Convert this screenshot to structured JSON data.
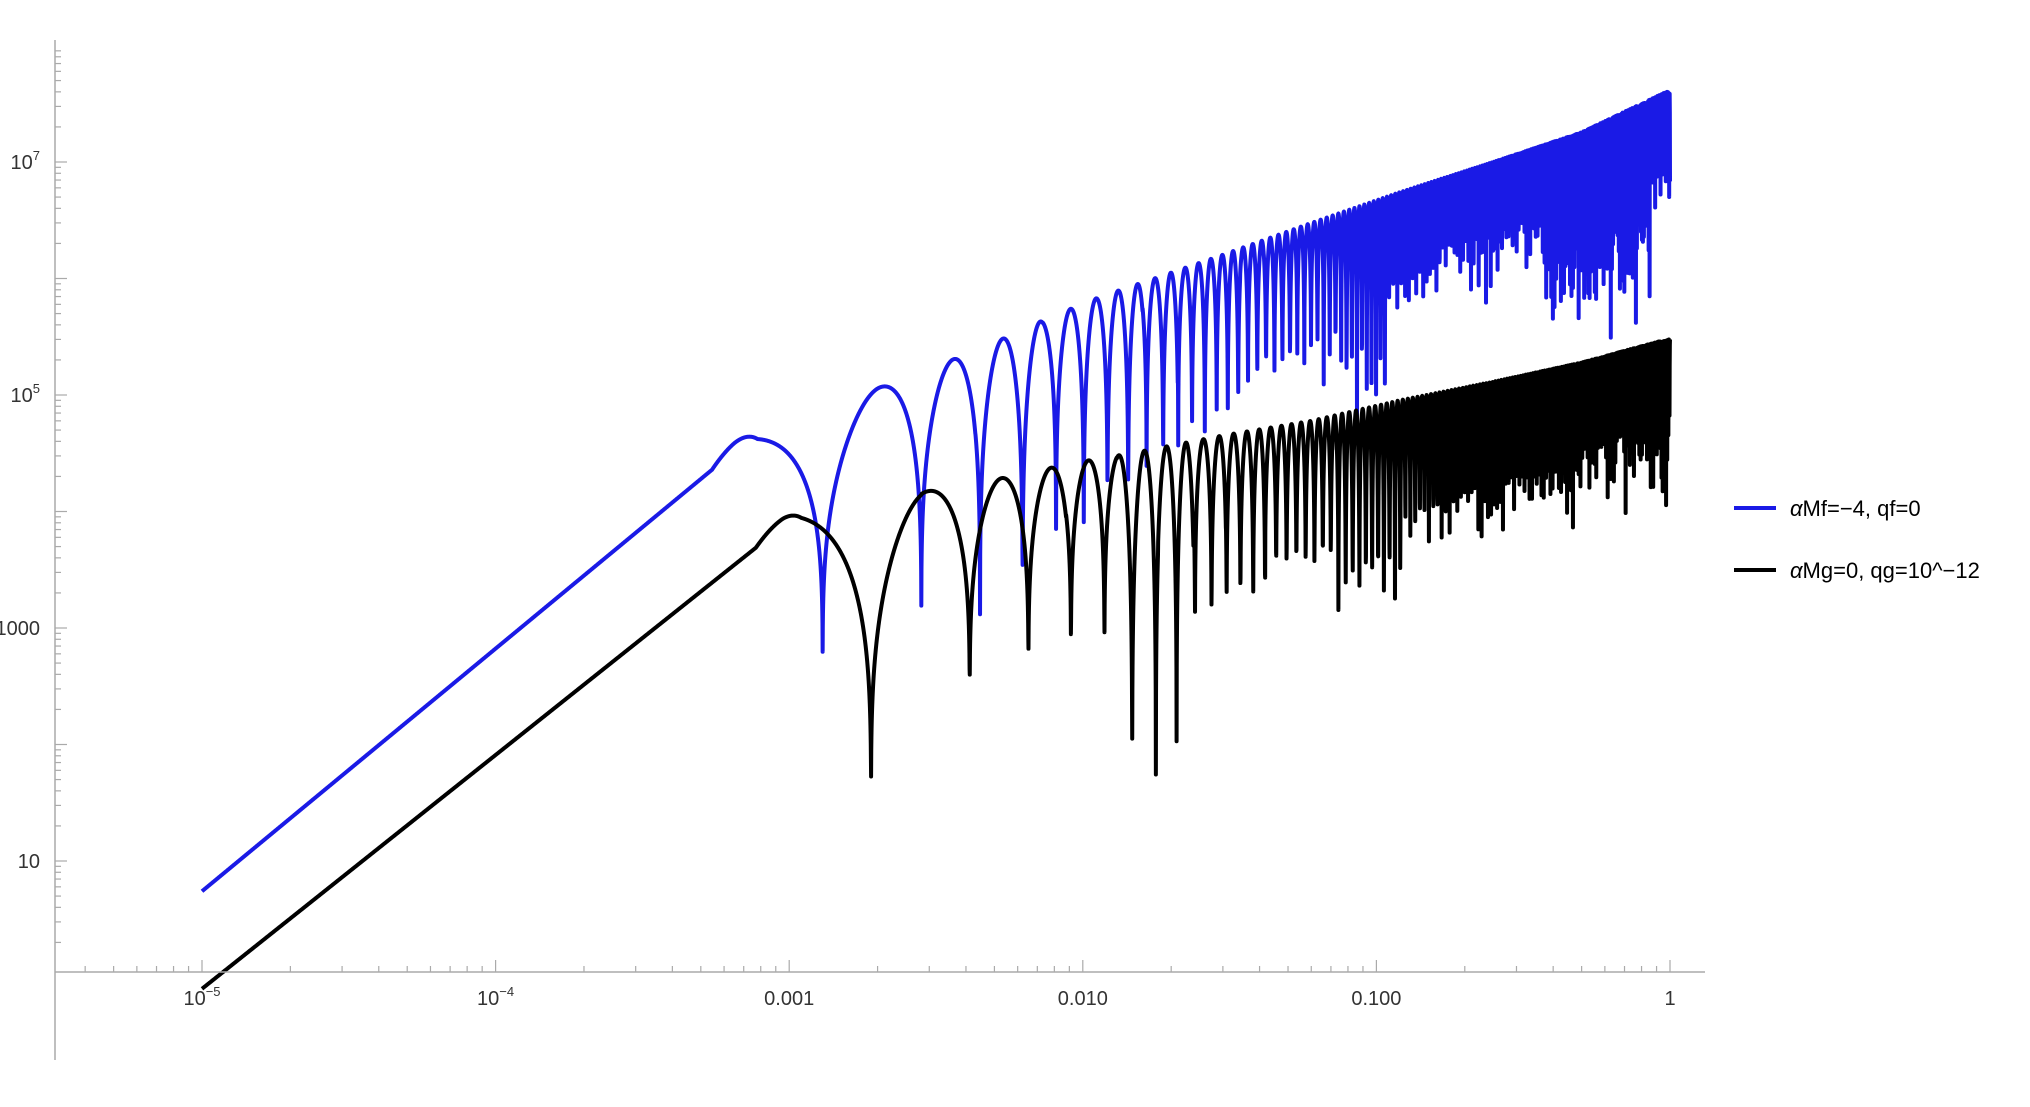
{
  "chart_data": {
    "type": "line",
    "scale": {
      "x": "log",
      "y": "log"
    },
    "xlim": [
      3e-06,
      1.3
    ],
    "ylim": [
      1,
      100000000.0
    ],
    "x_ticks": [
      {
        "value": 1e-05,
        "base": "10",
        "exp": "−5"
      },
      {
        "value": 0.0001,
        "base": "10",
        "exp": "−4"
      },
      {
        "value": 0.001,
        "text": "0.001"
      },
      {
        "value": 0.01,
        "text": "0.010"
      },
      {
        "value": 0.1,
        "text": "0.100"
      },
      {
        "value": 1,
        "text": "1"
      }
    ],
    "y_ticks": [
      {
        "value": 10,
        "text": "10"
      },
      {
        "value": 1000,
        "text": "1000"
      },
      {
        "value": 100000,
        "base": "10",
        "exp": "5"
      },
      {
        "value": 10000000,
        "base": "10",
        "exp": "7"
      }
    ],
    "legend_position": "right",
    "series": [
      {
        "name": "αMf=−4, qf=0",
        "greek": "α",
        "rest": "Mf=−4, qf=0",
        "color": "#1a1ae6",
        "x_start": 1e-05,
        "x_end": 1,
        "y_at_start": 5.5,
        "peaks": [
          {
            "x": 0.00078,
            "y": 48000
          },
          {
            "x": 0.0023,
            "y": 130000
          },
          {
            "x": 0.0045,
            "y": 250000
          },
          {
            "x": 0.0075,
            "y": 450000
          },
          {
            "x": 0.0115,
            "y": 700000
          },
          {
            "x": 0.0175,
            "y": 1000000
          },
          {
            "x": 0.03,
            "y": 1600000
          },
          {
            "x": 0.06,
            "y": 3000000
          },
          {
            "x": 0.12,
            "y": 5500000
          },
          {
            "x": 0.25,
            "y": 10000000
          },
          {
            "x": 0.5,
            "y": 18000000
          },
          {
            "x": 0.97,
            "y": 40000000
          }
        ],
        "nulls": [
          {
            "x": 0.0013,
            "y": 350
          },
          {
            "x": 0.0032,
            "y": 850
          },
          {
            "x": 0.0058,
            "y": 900
          },
          {
            "x": 0.0092,
            "y": 3200
          },
          {
            "x": 0.0138,
            "y": 5000
          },
          {
            "x": 0.0185,
            "y": 10000
          },
          {
            "x": 0.024,
            "y": 20000
          },
          {
            "x": 0.031,
            "y": 30000
          },
          {
            "x": 0.038,
            "y": 50000
          },
          {
            "x": 0.045,
            "y": 60000
          },
          {
            "x": 0.0605,
            "y": 100000
          },
          {
            "x": 0.072,
            "y": 70000
          },
          {
            "x": 0.085,
            "y": 30000
          },
          {
            "x": 0.14,
            "y": 300000
          },
          {
            "x": 0.2,
            "y": 500000
          },
          {
            "x": 0.3,
            "y": 500000
          },
          {
            "x": 0.46,
            "y": 100000
          },
          {
            "x": 0.77,
            "y": 80000
          },
          {
            "x": 0.95,
            "y": 1500000
          }
        ],
        "n_null_min": 1,
        "period_quadratic": 48000
      },
      {
        "name": "αMg=0, qg=10^−12",
        "greek": "α",
        "rest": "Mg=0, qg=10^−12",
        "color": "#000000",
        "x_start": 1e-05,
        "x_end": 1,
        "y_at_start": 0.8,
        "peaks": [
          {
            "x": 0.0011,
            "y": 10000
          },
          {
            "x": 0.003,
            "y": 15000
          },
          {
            "x": 0.0057,
            "y": 20000
          },
          {
            "x": 0.0092,
            "y": 26000
          },
          {
            "x": 0.015,
            "y": 32000
          },
          {
            "x": 0.03,
            "y": 45000
          },
          {
            "x": 0.06,
            "y": 60000
          },
          {
            "x": 0.12,
            "y": 90000
          },
          {
            "x": 0.25,
            "y": 130000
          },
          {
            "x": 0.5,
            "y": 190000
          },
          {
            "x": 0.97,
            "y": 300000
          }
        ],
        "nulls": [
          {
            "x": 0.0019,
            "y": 22
          },
          {
            "x": 0.0042,
            "y": 160
          },
          {
            "x": 0.007,
            "y": 270
          },
          {
            "x": 0.011,
            "y": 350
          },
          {
            "x": 0.0155,
            "y": 22
          },
          {
            "x": 0.021,
            "y": 40
          },
          {
            "x": 0.027,
            "y": 450
          },
          {
            "x": 0.035,
            "y": 600
          },
          {
            "x": 0.05,
            "y": 1100
          },
          {
            "x": 0.1,
            "y": 500
          },
          {
            "x": 0.15,
            "y": 2000
          },
          {
            "x": 0.25,
            "y": 2500
          },
          {
            "x": 0.4,
            "y": 3000
          },
          {
            "x": 0.6,
            "y": 4000
          },
          {
            "x": 0.9,
            "y": 4500
          }
        ],
        "n_null_min": 1,
        "period_quadratic": 50000
      }
    ]
  }
}
